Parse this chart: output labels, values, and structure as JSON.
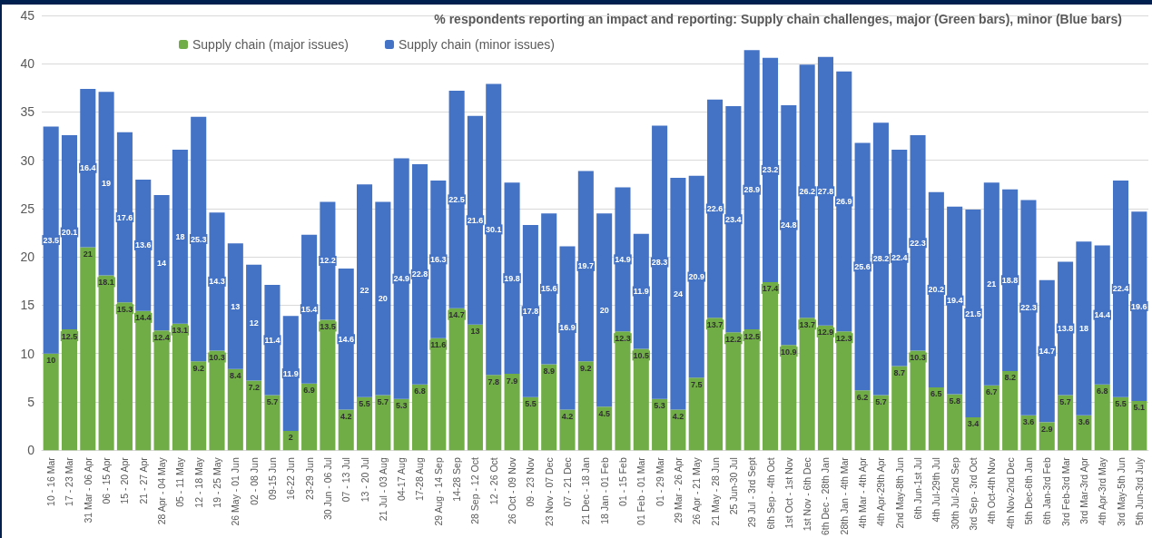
{
  "chart_data": {
    "type": "bar",
    "stacked": true,
    "title": "% respondents reporting an impact and reporting: Supply chain challenges, major (Green bars), minor (Blue bars)",
    "categories": [
      "10 - 16 Mar",
      "17 - 23 Mar",
      "31 Mar - 06 Apr",
      "06 - 15 Apr",
      "15 - 20 Apr",
      "21 - 27 Apr",
      "28 Apr - 04 May",
      "05 - 11 May",
      "12 - 18 May",
      "19 - 25 May",
      "26 May - 01 Jun",
      "02 - 08 Jun",
      "09-15 Jun",
      "16-22 Jun",
      "23-29 Jun",
      "30 Jun - 06 Jul",
      "07 - 13 Jul",
      "13 - 20 Jul",
      "21 Jul - 03 Aug",
      "04-17 Aug",
      "17-28 Aug",
      "29 Aug - 14 Sep",
      "14-28 Sep",
      "28 Sep - 12 Oct",
      "12 - 26 Oct",
      "26 Oct - 09 Nov",
      "09 - 23 Nov",
      "23 Nov - 07 Dec",
      "07 - 21 Dec",
      "21 Dec - 18 Jan",
      "18 Jan - 01 Feb",
      "01 - 15 Feb",
      "01 Feb - 01 Mar",
      "01 - 29 Mar",
      "29 Mar - 26 Apr",
      "26 Apr - 21 May",
      "21 May - 28 Jun",
      "25 Jun-30 Jul",
      "29 Jul - 3rd Sept",
      "6th Sep - 4th Oct",
      "1st Oct - 1st Nov",
      "1st Nov - 6th Dec",
      "6th Dec - 28th Jan",
      "28th Jan - 4th Mar",
      "4th Mar - 4th Apr",
      "4th Apr-29th Apr",
      "2nd May-8th Jun",
      "6th Jun-1st Jul",
      "4th Jul-29th Jul",
      "30th Jul-2nd Sep",
      "3rd Sep - 3rd Oct",
      "4th Oct-4th Nov",
      "4th Nov-2nd Dec",
      "5th Dec-6th Jan",
      "6th Jan-3rd Feb",
      "3rd Feb-3rd Mar",
      "3rd Mar-3rd Apr",
      "4th Apr-3rd May",
      "3rd May-5th Jun",
      "5th Jun-3rd July"
    ],
    "series": [
      {
        "name": "Supply chain (major issues)",
        "color": "#70ad47",
        "values": [
          10,
          12.5,
          21,
          18.1,
          15.3,
          14.4,
          12.4,
          13.1,
          9.2,
          10.3,
          8.4,
          7.2,
          5.7,
          2,
          6.9,
          13.5,
          4.2,
          5.5,
          5.7,
          5.3,
          6.8,
          11.6,
          14.7,
          13,
          7.8,
          7.9,
          5.5,
          8.9,
          4.2,
          9.2,
          4.5,
          12.3,
          10.5,
          5.3,
          4.2,
          7.5,
          13.7,
          12.2,
          12.5,
          17.4,
          10.9,
          13.7,
          12.9,
          12.3,
          6.2,
          5.7,
          8.7,
          10.3,
          6.5,
          5.8,
          3.4,
          6.7,
          8.2,
          3.6,
          2.9,
          5.7,
          3.6,
          6.8,
          5.5,
          5.1
        ]
      },
      {
        "name": "Supply chain (minor issues)",
        "color": "#4472c4",
        "values": [
          23.5,
          20.1,
          16.4,
          19,
          17.6,
          13.6,
          14,
          18,
          25.3,
          14.3,
          13,
          12,
          11.4,
          11.9,
          15.4,
          12.2,
          14.6,
          22,
          20,
          24.9,
          22.8,
          16.3,
          22.5,
          21.6,
          30.1,
          19.8,
          17.8,
          15.6,
          16.9,
          19.7,
          20,
          14.9,
          11.9,
          28.3,
          24,
          20.9,
          22.6,
          23.4,
          28.9,
          23.2,
          24.8,
          26.2,
          27.8,
          26.9,
          25.6,
          28.2,
          22.4,
          22.3,
          20.2,
          19.4,
          21.5,
          21,
          18.8,
          22.3,
          14.7,
          13.8,
          18,
          14.4,
          22.4,
          19.6
        ]
      }
    ],
    "ylim": [
      0,
      45
    ],
    "yticks": [
      0,
      5,
      10,
      15,
      20,
      25,
      30,
      35,
      40,
      45
    ],
    "grid": "y",
    "legend": "top",
    "data_labels": true
  }
}
